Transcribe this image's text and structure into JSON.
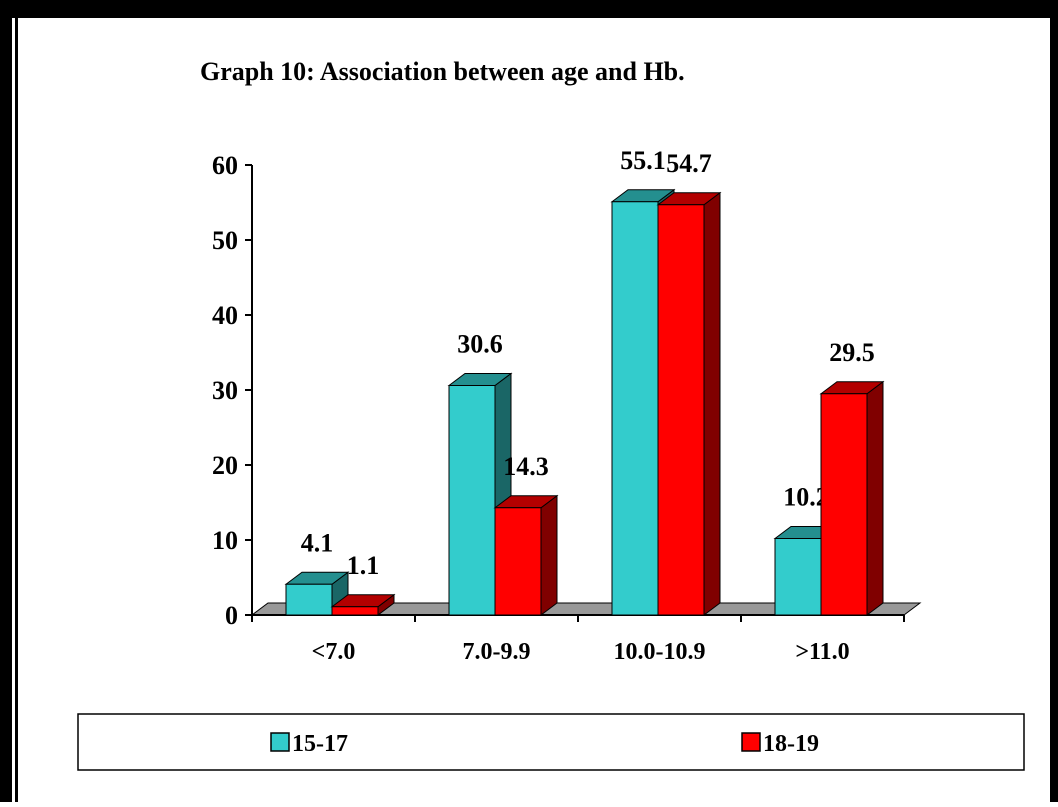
{
  "chart_data": {
    "type": "bar3d",
    "title": "Graph 10: Association between age and Hb.",
    "categories": [
      "<7.0",
      "7.0-9.9",
      "10.0-10.9",
      ">11.0"
    ],
    "series": [
      {
        "name": "15-17",
        "color": "#33cccc",
        "values": [
          4.1,
          30.6,
          55.1,
          10.2
        ]
      },
      {
        "name": "18-19",
        "color": "#ff0000",
        "values": [
          1.1,
          14.3,
          54.7,
          29.5
        ]
      }
    ],
    "ylim": [
      0,
      60
    ],
    "yticks": [
      0,
      10,
      20,
      30,
      40,
      50,
      60
    ]
  }
}
